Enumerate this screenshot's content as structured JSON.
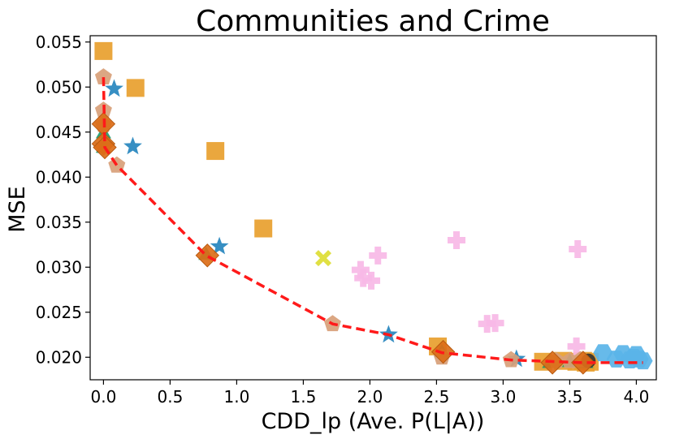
{
  "chart_data": {
    "type": "scatter",
    "title": "Communities and Crime",
    "xlabel": "CDD_lp (Ave. P(L|A))",
    "ylabel": "MSE",
    "xlim": [
      -0.1,
      4.15
    ],
    "ylim": [
      0.0175,
      0.0557
    ],
    "xticks": [
      0.0,
      0.5,
      1.0,
      1.5,
      2.0,
      2.5,
      3.0,
      3.5,
      4.0
    ],
    "xtick_labels": [
      "0.0",
      "0.5",
      "1.0",
      "1.5",
      "2.0",
      "2.5",
      "3.0",
      "3.5",
      "4.0"
    ],
    "yticks": [
      0.02,
      0.025,
      0.03,
      0.035,
      0.04,
      0.045,
      0.05,
      0.055
    ],
    "ytick_labels": [
      "0.020",
      "0.025",
      "0.030",
      "0.035",
      "0.040",
      "0.045",
      "0.050",
      "0.055"
    ],
    "grid": false,
    "series": [
      {
        "marker": "square",
        "color": "#E8A02E",
        "points": [
          [
            0.0,
            0.054
          ],
          [
            0.24,
            0.0499
          ],
          [
            0.84,
            0.0429
          ],
          [
            1.2,
            0.0343
          ],
          [
            2.51,
            0.0212
          ],
          [
            3.3,
            0.0195
          ],
          [
            3.45,
            0.0196
          ],
          [
            3.55,
            0.0195
          ],
          [
            3.6,
            0.0196
          ],
          [
            3.62,
            0.0194
          ],
          [
            3.65,
            0.0195
          ]
        ]
      },
      {
        "marker": "plus",
        "color": "#F7B8E6",
        "points": [
          [
            1.93,
            0.0297
          ],
          [
            2.06,
            0.0313
          ],
          [
            1.95,
            0.0288
          ],
          [
            2.01,
            0.0285
          ],
          [
            2.65,
            0.033
          ],
          [
            2.88,
            0.0237
          ],
          [
            2.94,
            0.0238
          ],
          [
            3.56,
            0.032
          ],
          [
            3.55,
            0.0212
          ]
        ]
      },
      {
        "marker": "hexagon",
        "color": "#5AB4E8",
        "points": [
          [
            3.75,
            0.0205
          ],
          [
            3.85,
            0.0198
          ],
          [
            3.9,
            0.0204
          ],
          [
            3.95,
            0.0197
          ],
          [
            3.98,
            0.02
          ],
          [
            4.0,
            0.0203
          ],
          [
            4.02,
            0.0198
          ],
          [
            4.05,
            0.0196
          ]
        ]
      },
      {
        "marker": "x",
        "color": "#DDDD33",
        "points": [
          [
            1.65,
            0.031
          ]
        ]
      },
      {
        "marker": "star",
        "color": "#2685BE",
        "points": [
          [
            0.08,
            0.0498
          ],
          [
            0.22,
            0.0434
          ],
          [
            0.87,
            0.0323
          ],
          [
            2.14,
            0.0225
          ],
          [
            3.1,
            0.0198
          ],
          [
            0.0,
            0.0435
          ]
        ]
      },
      {
        "marker": "triangle",
        "color": "#1E9B6E",
        "points": [
          [
            0.0,
            0.0448
          ],
          [
            0.0,
            0.0432
          ],
          [
            0.77,
            0.0313
          ],
          [
            2.54,
            0.0205
          ],
          [
            3.35,
            0.0193
          ],
          [
            3.5,
            0.0194
          ],
          [
            3.62,
            0.0193
          ]
        ]
      },
      {
        "marker": "pentagon",
        "color": "#D8A078",
        "points": [
          [
            0.0,
            0.0511
          ],
          [
            0.0,
            0.0474
          ],
          [
            0.0,
            0.0458
          ],
          [
            0.1,
            0.0413
          ],
          [
            1.72,
            0.0237
          ],
          [
            2.54,
            0.02
          ],
          [
            3.06,
            0.0197
          ],
          [
            3.4,
            0.0196
          ],
          [
            3.5,
            0.0196
          ],
          [
            3.58,
            0.0197
          ]
        ]
      },
      {
        "marker": "circle",
        "color": "#333333",
        "points": [
          [
            3.64,
            0.0196
          ]
        ]
      },
      {
        "marker": "diamond",
        "color": "#DC6E18",
        "points": [
          [
            0.0,
            0.0459
          ],
          [
            0.0,
            0.0437
          ],
          [
            0.01,
            0.0433
          ],
          [
            0.78,
            0.0313
          ],
          [
            2.55,
            0.0206
          ],
          [
            3.37,
            0.0194
          ],
          [
            3.6,
            0.0194
          ]
        ]
      },
      {
        "marker": "dashed-line",
        "color": "#FF1A1A",
        "points": [
          [
            0.0,
            0.0511
          ],
          [
            0.01,
            0.0433
          ],
          [
            0.1,
            0.0413
          ],
          [
            0.77,
            0.0313
          ],
          [
            1.72,
            0.0237
          ],
          [
            2.14,
            0.0225
          ],
          [
            2.54,
            0.0205
          ],
          [
            3.06,
            0.0197
          ],
          [
            3.6,
            0.0194
          ],
          [
            4.05,
            0.0194
          ]
        ]
      }
    ]
  }
}
